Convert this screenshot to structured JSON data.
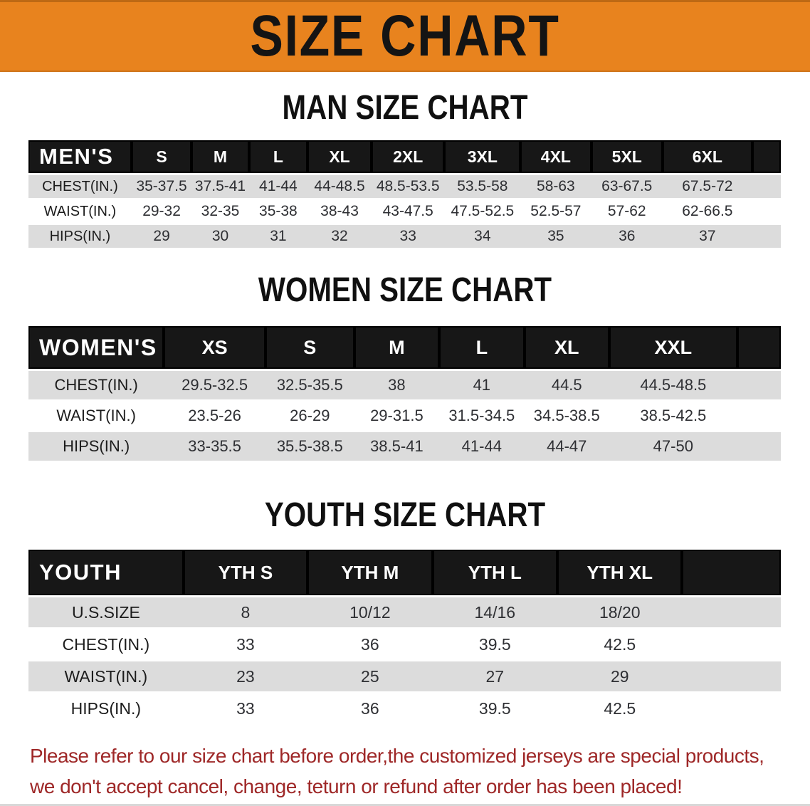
{
  "banner": {
    "title": "SIZE CHART"
  },
  "sections": [
    {
      "title": "MAN SIZE CHART",
      "table": {
        "header_label": "MEN'S",
        "columns": [
          "S",
          "M",
          "L",
          "XL",
          "2XL",
          "3XL",
          "4XL",
          "5XL",
          "6XL"
        ],
        "rows": [
          {
            "label": "CHEST(IN.)",
            "values": [
              "35-37.5",
              "37.5-41",
              "41-44",
              "44-48.5",
              "48.5-53.5",
              "53.5-58",
              "58-63",
              "63-67.5",
              "67.5-72"
            ]
          },
          {
            "label": "WAIST(IN.)",
            "values": [
              "29-32",
              "32-35",
              "35-38",
              "38-43",
              "43-47.5",
              "47.5-52.5",
              "52.5-57",
              "57-62",
              "62-66.5"
            ]
          },
          {
            "label": "HIPS(IN.)",
            "values": [
              "29",
              "30",
              "31",
              "32",
              "33",
              "34",
              "35",
              "36",
              "37"
            ]
          }
        ]
      }
    },
    {
      "title": "WOMEN SIZE CHART",
      "table": {
        "header_label": "WOMEN'S",
        "columns": [
          "XS",
          "S",
          "M",
          "L",
          "XL",
          "XXL"
        ],
        "rows": [
          {
            "label": "CHEST(IN.)",
            "values": [
              "29.5-32.5",
              "32.5-35.5",
              "38",
              "41",
              "44.5",
              "44.5-48.5"
            ]
          },
          {
            "label": "WAIST(IN.)",
            "values": [
              "23.5-26",
              "26-29",
              "29-31.5",
              "31.5-34.5",
              "34.5-38.5",
              "38.5-42.5"
            ]
          },
          {
            "label": "HIPS(IN.)",
            "values": [
              "33-35.5",
              "35.5-38.5",
              "38.5-41",
              "41-44",
              "44-47",
              "47-50"
            ]
          }
        ]
      }
    },
    {
      "title": "YOUTH SIZE CHART",
      "table": {
        "header_label": "YOUTH",
        "columns": [
          "YTH S",
          "YTH M",
          "YTH L",
          "YTH XL"
        ],
        "rows": [
          {
            "label": "U.S.SIZE",
            "values": [
              "8",
              "10/12",
              "14/16",
              "18/20"
            ]
          },
          {
            "label": "CHEST(IN.)",
            "values": [
              "33",
              "36",
              "39.5",
              "42.5"
            ]
          },
          {
            "label": "WAIST(IN.)",
            "values": [
              "23",
              "25",
              "27",
              "29"
            ]
          },
          {
            "label": "HIPS(IN.)",
            "values": [
              "33",
              "36",
              "39.5",
              "42.5"
            ]
          }
        ]
      }
    }
  ],
  "footer": {
    "line1": "Please refer to our size chart before order,the customized jerseys are special products,",
    "line2": "we don't accept cancel, change, teturn or refund after order has been placed!"
  },
  "colors": {
    "accent_orange": "#e8831e",
    "table_header_black": "#171717",
    "row_stripe_gray": "#dcdcdc",
    "disclaimer_red": "#9e2727"
  }
}
